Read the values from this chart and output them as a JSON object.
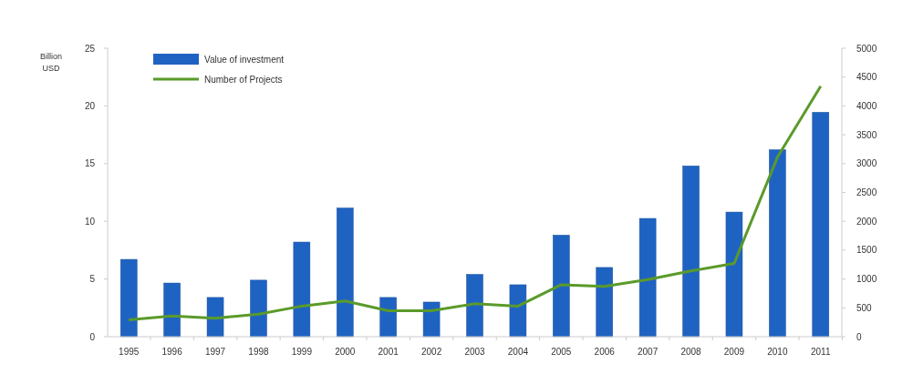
{
  "chart_data": {
    "type": "bar",
    "ylabel": "Billion USD",
    "categories": [
      "1995",
      "1996",
      "1997",
      "1998",
      "1999",
      "2000",
      "2001",
      "2002",
      "2003",
      "2004",
      "2005",
      "2006",
      "2007",
      "2008",
      "2009",
      "2010",
      "2011"
    ],
    "series": [
      {
        "name": "Value of investment",
        "color": "#1f63c2",
        "values": [
          6.7,
          4.65,
          3.4,
          4.9,
          8.2,
          11.15,
          3.4,
          3.0,
          5.4,
          4.5,
          8.8,
          6.0,
          10.25,
          14.8,
          10.8,
          16.2,
          19.45
        ]
      },
      {
        "name": "Number of Projects",
        "type": "line",
        "axis": "y2",
        "color": "#5a9a2a",
        "values": [
          290,
          360,
          320,
          390,
          530,
          620,
          450,
          450,
          570,
          530,
          900,
          870,
          990,
          1140,
          1270,
          3110,
          4340
        ]
      }
    ],
    "ylim": [
      0,
      25
    ],
    "yticks": [
      0,
      5,
      10,
      15,
      20,
      25
    ],
    "y2lim": [
      0,
      5000
    ],
    "y2ticks": [
      0,
      500,
      1000,
      1500,
      2000,
      2500,
      3000,
      3500,
      4000,
      4500,
      5000
    ],
    "legend": "top left",
    "grid": false
  }
}
